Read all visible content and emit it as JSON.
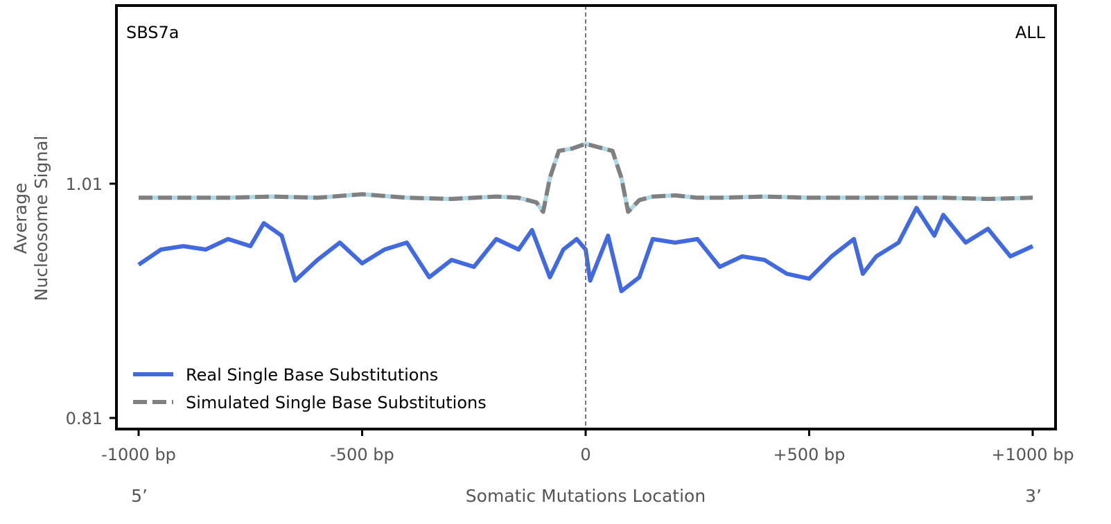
{
  "chart_data": {
    "type": "line",
    "title_left": "SBS7a",
    "title_right": "ALL",
    "xlabel": "Somatic Mutations Location",
    "ylabel_lines": [
      "Average",
      "Nucleosome Signal"
    ],
    "xlim": [
      -1050,
      1050
    ],
    "ylim": [
      0.8,
      1.17
    ],
    "x_ticks": [
      {
        "value": -1000,
        "label": "-1000 bp"
      },
      {
        "value": -500,
        "label": "-500 bp"
      },
      {
        "value": 0,
        "label": "0"
      },
      {
        "value": 500,
        "label": "+500 bp"
      },
      {
        "value": 1000,
        "label": "+1000 bp"
      }
    ],
    "y_ticks": [
      {
        "value": 0.81,
        "label": "0.81"
      },
      {
        "value": 1.01,
        "label": "1.01"
      }
    ],
    "end_labels": {
      "left": "5’",
      "right": "3’"
    },
    "vline_x": 0,
    "legend_position": "lower-left",
    "series": [
      {
        "name": "Real Single Base Substitutions",
        "color": "#4169e1",
        "style": "solid",
        "x": [
          -1000,
          -950,
          -900,
          -850,
          -800,
          -750,
          -720,
          -680,
          -650,
          -600,
          -550,
          -500,
          -450,
          -400,
          -350,
          -300,
          -250,
          -200,
          -150,
          -120,
          -80,
          -50,
          -20,
          0,
          10,
          50,
          80,
          120,
          150,
          200,
          250,
          300,
          350,
          400,
          450,
          500,
          550,
          600,
          620,
          650,
          700,
          740,
          780,
          800,
          850,
          900,
          950,
          1000
        ],
        "y": [
          0.9408,
          0.9538,
          0.9567,
          0.9538,
          0.9627,
          0.9567,
          0.9763,
          0.9656,
          0.9272,
          0.9449,
          0.9597,
          0.942,
          0.9538,
          0.9597,
          0.9301,
          0.9449,
          0.939,
          0.9627,
          0.9538,
          0.9704,
          0.9301,
          0.9538,
          0.9627,
          0.9538,
          0.9272,
          0.9656,
          0.9183,
          0.9301,
          0.9627,
          0.9597,
          0.9627,
          0.939,
          0.9479,
          0.9449,
          0.9331,
          0.9289,
          0.9479,
          0.9627,
          0.9331,
          0.9479,
          0.9597,
          0.9893,
          0.9656,
          0.9834,
          0.9597,
          0.9715,
          0.9479,
          0.9567
        ]
      },
      {
        "name": "Simulated Single Base Substitutions",
        "color": "#808080",
        "under_color": "#add8e6",
        "style": "dashed",
        "x": [
          -1000,
          -900,
          -800,
          -700,
          -600,
          -500,
          -400,
          -300,
          -200,
          -150,
          -110,
          -95,
          -80,
          -60,
          -30,
          0,
          30,
          60,
          80,
          95,
          120,
          150,
          200,
          250,
          300,
          400,
          500,
          600,
          700,
          800,
          900,
          1000
        ],
        "y": [
          0.998,
          0.998,
          0.998,
          0.999,
          0.998,
          1.001,
          0.998,
          0.997,
          0.999,
          0.998,
          0.994,
          0.986,
          1.015,
          1.038,
          1.04,
          1.044,
          1.041,
          1.038,
          1.015,
          0.986,
          0.996,
          0.999,
          1.0,
          0.998,
          0.998,
          0.999,
          0.998,
          0.998,
          0.998,
          0.998,
          0.997,
          0.998
        ]
      }
    ]
  }
}
